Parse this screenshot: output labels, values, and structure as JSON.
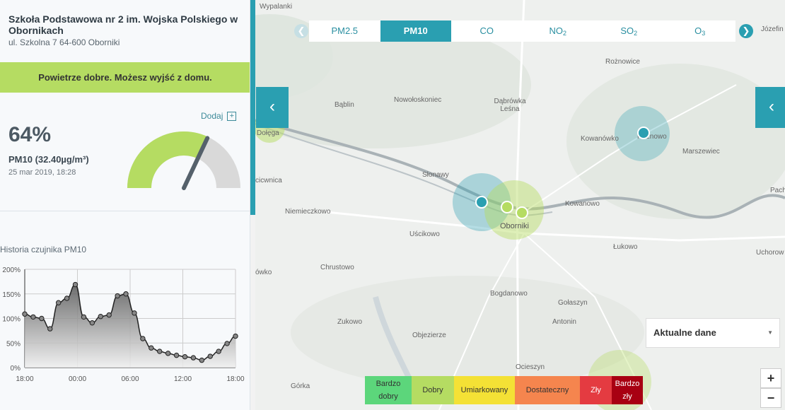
{
  "station": {
    "name": "Szkoła Podstawowa nr 2 im. Wojska Polskiego w Obornikach",
    "address": "ul. Szkolna 7 64-600 Oborniki"
  },
  "status_banner": "Powietrze dobre. Możesz wyjść z domu.",
  "add_label": "Dodaj",
  "add_icon": "plus-box-icon",
  "reading": {
    "percent": "64%",
    "pm_label": "PM10 (32.40µg/m³)",
    "date": "25 mar 2019, 18:28",
    "gauge_level": 0.64
  },
  "history": {
    "title": "Historia czujnika PM10",
    "y_ticks": [
      "200%",
      "150%",
      "100%",
      "50%",
      "0%"
    ],
    "x_ticks": [
      "18:00",
      "00:00",
      "06:00",
      "12:00",
      "18:00"
    ],
    "values": [
      109,
      103,
      100,
      79,
      132,
      141,
      169,
      103,
      91,
      104,
      107,
      146,
      150,
      111,
      59,
      40,
      33,
      29,
      25,
      22,
      20,
      15,
      23,
      33,
      49,
      64
    ]
  },
  "tabs": {
    "prev_icon": "chevron-left-icon",
    "next_icon": "chevron-right-icon",
    "items": [
      {
        "label": "PM2.5",
        "sub": ""
      },
      {
        "label": "PM10",
        "sub": ""
      },
      {
        "label": "CO",
        "sub": ""
      },
      {
        "label": "NO",
        "sub": "2"
      },
      {
        "label": "SO",
        "sub": "2"
      },
      {
        "label": "O",
        "sub": "3"
      }
    ],
    "active": 1
  },
  "map": {
    "labels": [
      "Wypalanki",
      "Józefin",
      "Rożnowice",
      "Bąblin",
      "Nowołoskoniec",
      "Dąbrówka Leśna",
      "Kowanówko",
      "Rożnowo",
      "Marszewiec",
      "Dołęga",
      "Słonawy",
      "cicwnica",
      "Pach",
      "Niemieczkowo",
      "Kowanowo",
      "Oborniki",
      "Uścikowo",
      "Łukowo",
      "Uchorow",
      "ówko",
      "Chrustowo",
      "Bogdanowo",
      "Gołaszyn",
      "Zukowo",
      "Antonin",
      "Objezierze",
      "Ocieszyn",
      "Górka"
    ],
    "colors": {
      "teal": "#2a9fb1",
      "green": "#b5dc62"
    }
  },
  "side_toggle_icon": "chevron-left-icon",
  "select": {
    "value": "Aktualne dane",
    "caret_icon": "caret-down-icon"
  },
  "zoom": {
    "in": "+",
    "out": "−"
  },
  "legend": [
    {
      "label": "Bardzo dobry",
      "color": "#5cd67b"
    },
    {
      "label": "Dobry",
      "color": "#b5dc62"
    },
    {
      "label": "Umiarkowany",
      "color": "#f4e135"
    },
    {
      "label": "Dostateczny",
      "color": "#f5854e"
    },
    {
      "label": "Zły",
      "color": "#e43b41"
    },
    {
      "label": "Bardzo zły",
      "color": "#a80012"
    }
  ]
}
